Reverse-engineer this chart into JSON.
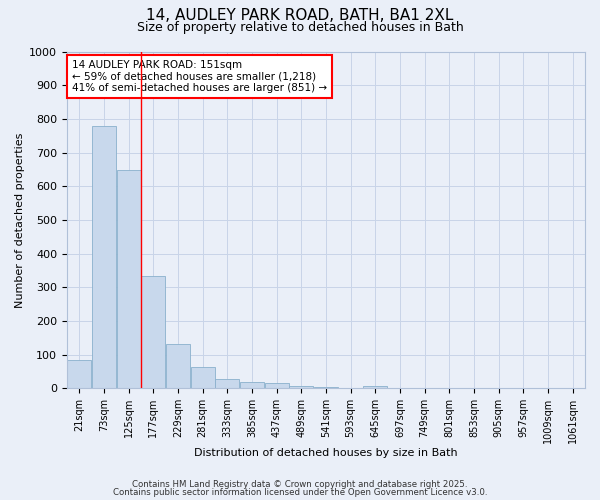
{
  "title_line1": "14, AUDLEY PARK ROAD, BATH, BA1 2XL",
  "title_line2": "Size of property relative to detached houses in Bath",
  "xlabel": "Distribution of detached houses by size in Bath",
  "ylabel": "Number of detached properties",
  "categories": [
    "21sqm",
    "73sqm",
    "125sqm",
    "177sqm",
    "229sqm",
    "281sqm",
    "333sqm",
    "385sqm",
    "437sqm",
    "489sqm",
    "541sqm",
    "593sqm",
    "645sqm",
    "697sqm",
    "749sqm",
    "801sqm",
    "853sqm",
    "905sqm",
    "957sqm",
    "1009sqm",
    "1061sqm"
  ],
  "values": [
    83,
    780,
    648,
    335,
    132,
    62,
    27,
    20,
    16,
    8,
    5,
    0,
    8,
    0,
    0,
    0,
    0,
    0,
    0,
    0,
    0
  ],
  "bar_color": "#c8d8ec",
  "bar_edge_color": "#8ab0cc",
  "redline_x": 2.5,
  "annotation_line1": "14 AUDLEY PARK ROAD: 151sqm",
  "annotation_line2": "← 59% of detached houses are smaller (1,218)",
  "annotation_line3": "41% of semi-detached houses are larger (851) →",
  "annotation_box_color": "white",
  "annotation_box_edge_color": "red",
  "ylim": [
    0,
    1000
  ],
  "yticks": [
    0,
    100,
    200,
    300,
    400,
    500,
    600,
    700,
    800,
    900,
    1000
  ],
  "grid_color": "#c8d4e8",
  "background_color": "#eaeff8",
  "footer_line1": "Contains HM Land Registry data © Crown copyright and database right 2025.",
  "footer_line2": "Contains public sector information licensed under the Open Government Licence v3.0."
}
